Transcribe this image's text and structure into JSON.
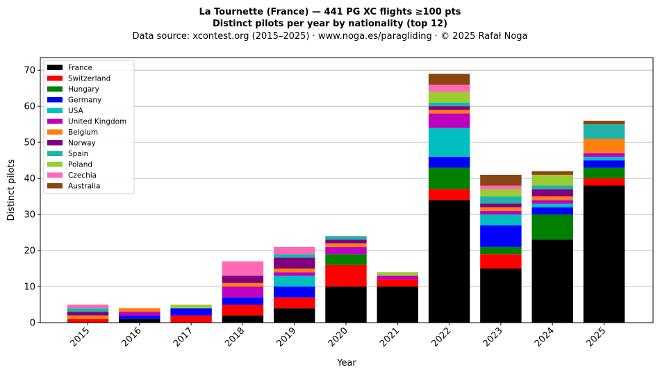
{
  "chart_data": {
    "type": "bar",
    "stacked": true,
    "title": "La Tournette (France)  —  441 PG XC flights ≥100 pts",
    "subtitle": "Distinct pilots per year by nationality (top 12)",
    "source": "Data source: xcontest.org (2015–2025)  ·  www.noga.es/paragliding  ·  © 2025 Rafał Noga",
    "xlabel": "Year",
    "ylabel": "Distinct pilots",
    "ylim": [
      0,
      73.5
    ],
    "yticks": [
      0,
      10,
      20,
      30,
      40,
      50,
      60,
      70
    ],
    "grid": "y",
    "legend_position": "top-left",
    "categories": [
      "2015",
      "2016",
      "2017",
      "2018",
      "2019",
      "2020",
      "2021",
      "2022",
      "2023",
      "2024",
      "2025"
    ],
    "series": [
      {
        "name": "France",
        "color": "#000000",
        "values": [
          0,
          1,
          0,
          2,
          4,
          10,
          10,
          34,
          15,
          23,
          38
        ]
      },
      {
        "name": "Switzerland",
        "color": "#ff0000",
        "values": [
          1,
          0,
          2,
          3,
          3,
          6,
          2,
          3,
          4,
          0,
          2
        ]
      },
      {
        "name": "Hungary",
        "color": "#008000",
        "values": [
          0,
          0,
          0,
          0,
          0,
          3,
          0,
          6,
          2,
          7,
          3
        ]
      },
      {
        "name": "Germany",
        "color": "#0000ff",
        "values": [
          0,
          1,
          2,
          2,
          3,
          0,
          0,
          3,
          6,
          2,
          2
        ]
      },
      {
        "name": "USA",
        "color": "#00bfbf",
        "values": [
          0,
          0,
          0,
          0,
          3,
          0,
          0,
          8,
          3,
          1,
          1
        ]
      },
      {
        "name": "United Kingdom",
        "color": "#bf00bf",
        "values": [
          0,
          1,
          0,
          3,
          1,
          2,
          1,
          4,
          1,
          1,
          1
        ]
      },
      {
        "name": "Belgium",
        "color": "#ff7f0e",
        "values": [
          1,
          1,
          0,
          1,
          1,
          1,
          0,
          1,
          1,
          1,
          4
        ]
      },
      {
        "name": "Norway",
        "color": "#800080",
        "values": [
          1,
          0,
          0,
          2,
          3,
          1,
          0,
          1,
          1,
          2,
          0
        ]
      },
      {
        "name": "Spain",
        "color": "#20b2aa",
        "values": [
          1,
          0,
          0,
          0,
          1,
          1,
          0,
          1,
          2,
          1,
          4
        ]
      },
      {
        "name": "Poland",
        "color": "#9acd32",
        "values": [
          0,
          0,
          1,
          0,
          0,
          0,
          1,
          3,
          2,
          3,
          0
        ]
      },
      {
        "name": "Czechia",
        "color": "#ff69b4",
        "values": [
          1,
          0,
          0,
          4,
          2,
          0,
          0,
          2,
          1,
          0,
          0
        ]
      },
      {
        "name": "Australia",
        "color": "#8b4513",
        "values": [
          0,
          0,
          0,
          0,
          0,
          0,
          0,
          3,
          3,
          1,
          1
        ]
      }
    ]
  }
}
